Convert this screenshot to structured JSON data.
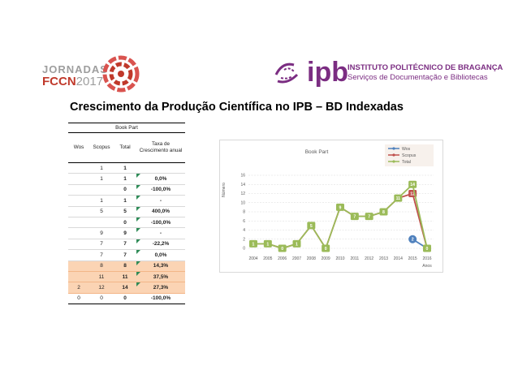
{
  "fccn_logo": {
    "top_text": "JORNADAS",
    "brand": "FCCN",
    "year": "2017",
    "color": "#c0392b"
  },
  "ipb_logo": {
    "word": "ipb",
    "name_line1": "INSTITUTO POLITÉCNICO DE BRAGANÇA",
    "name_line2": "Serviços de Documentação e Bibliotecas",
    "color": "#7b2d82"
  },
  "page_title": "Crescimento da Produção Científica no IPB – BD Indexadas",
  "table": {
    "title": "Book Part",
    "headers": {
      "wos": "Wos",
      "scopus": "Scopus",
      "total": "Total",
      "rate": "Taxa de Crescimento anual"
    },
    "rows": [
      {
        "wos": "",
        "scopus": "1",
        "total": "1",
        "rate": ""
      },
      {
        "wos": "",
        "scopus": "1",
        "total": "1",
        "rate": "0,0%"
      },
      {
        "wos": "",
        "scopus": "",
        "total": "0",
        "rate": "-100,0%"
      },
      {
        "wos": "",
        "scopus": "1",
        "total": "1",
        "rate": "-"
      },
      {
        "wos": "",
        "scopus": "5",
        "total": "5",
        "rate": "400,0%"
      },
      {
        "wos": "",
        "scopus": "",
        "total": "0",
        "rate": "-100,0%"
      },
      {
        "wos": "",
        "scopus": "9",
        "total": "9",
        "rate": "-"
      },
      {
        "wos": "",
        "scopus": "7",
        "total": "7",
        "rate": "-22,2%"
      },
      {
        "wos": "",
        "scopus": "7",
        "total": "7",
        "rate": "0,0%"
      },
      {
        "wos": "",
        "scopus": "8",
        "total": "8",
        "rate": "14,3%"
      },
      {
        "wos": "",
        "scopus": "11",
        "total": "11",
        "rate": "37,5%"
      },
      {
        "wos": "2",
        "scopus": "12",
        "total": "14",
        "rate": "27,3%"
      },
      {
        "wos": "0",
        "scopus": "0",
        "total": "0",
        "rate": "-100,0%"
      }
    ],
    "highlight_color": "#fbd4b4"
  },
  "chart_data": {
    "type": "line",
    "title": "Book Part",
    "xlabel": "Anos",
    "ylabel": "Número",
    "categories": [
      "2004",
      "2005",
      "2006",
      "2007",
      "2008",
      "2009",
      "2010",
      "2011",
      "2012",
      "2013",
      "2014",
      "2015",
      "2016"
    ],
    "ylim": [
      0,
      16
    ],
    "yticks": [
      "0",
      "2",
      "4",
      "6",
      "8",
      "10",
      "12",
      "14",
      "16"
    ],
    "grid": true,
    "legend": "top-right",
    "series": [
      {
        "name": "Wos",
        "color": "#4f81bd",
        "values": [
          null,
          null,
          null,
          null,
          null,
          null,
          null,
          null,
          null,
          null,
          null,
          2,
          0
        ],
        "labels": [
          null,
          null,
          null,
          null,
          null,
          null,
          null,
          null,
          null,
          null,
          null,
          "2",
          null
        ]
      },
      {
        "name": "Scopus",
        "color": "#c0504d",
        "values": [
          1,
          1,
          0,
          1,
          5,
          0,
          9,
          7,
          7,
          8,
          11,
          12,
          0
        ],
        "labels": [
          null,
          null,
          null,
          null,
          null,
          null,
          null,
          null,
          null,
          null,
          null,
          "12",
          null
        ]
      },
      {
        "name": "Total",
        "color": "#9bbb59",
        "values": [
          1,
          1,
          0,
          1,
          5,
          0,
          9,
          7,
          7,
          8,
          11,
          14,
          0
        ],
        "labels": [
          "1",
          "1",
          "0",
          "1",
          "5",
          "0",
          "9",
          "7",
          "7",
          "8",
          "11",
          "14",
          "0"
        ]
      }
    ]
  }
}
